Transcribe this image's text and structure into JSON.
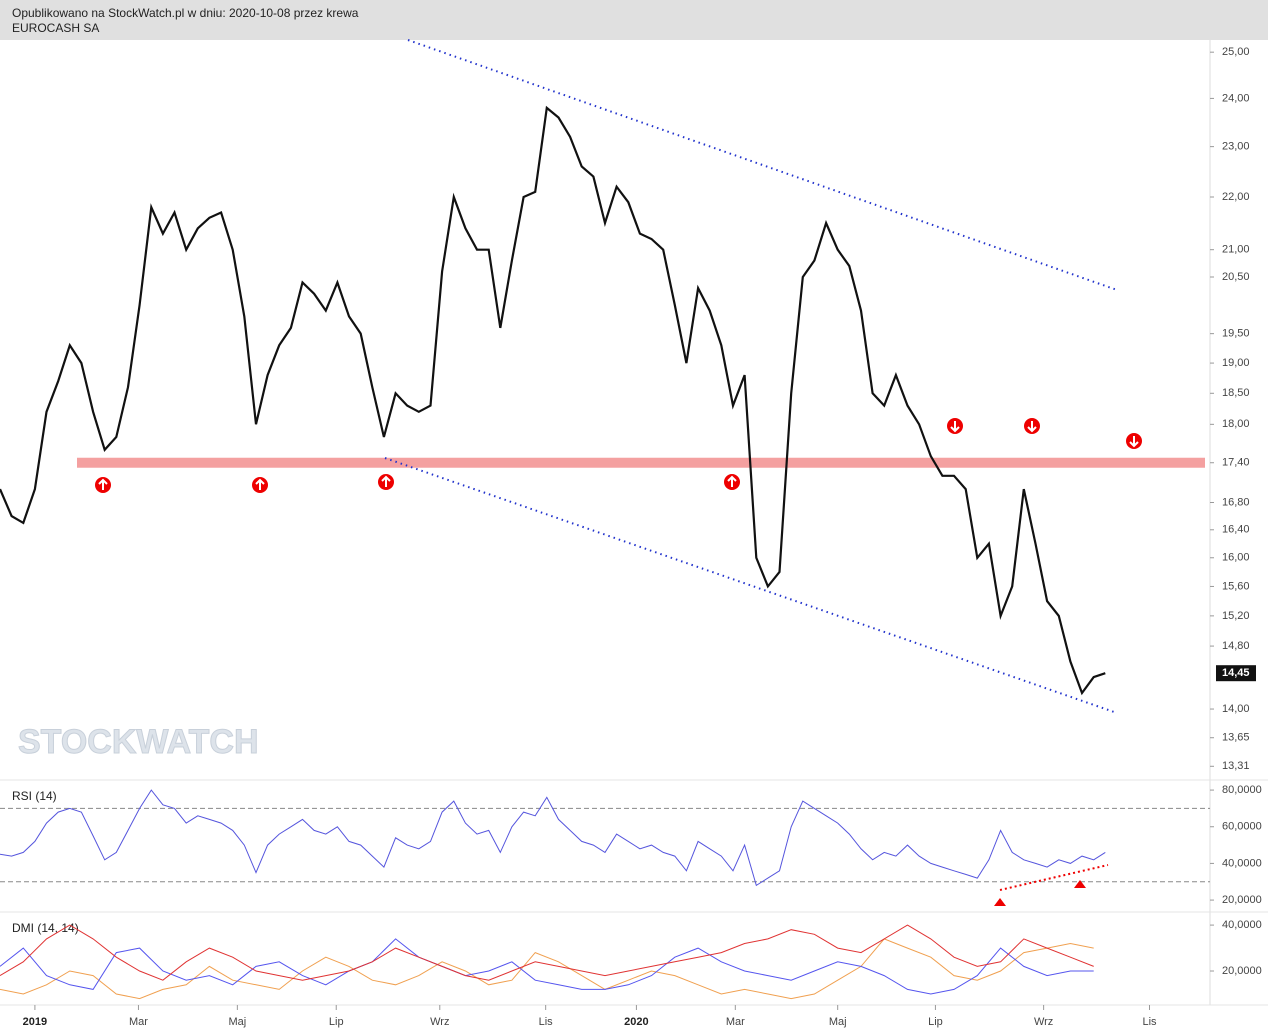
{
  "header": {
    "published": "Opublikowano na StockWatch.pl w dniu: 2020-10-08 przez krewa",
    "symbol": "EUROCASH SA"
  },
  "watermark": "STOCKWATCH",
  "chart_data": [
    {
      "type": "line",
      "log": true,
      "color": "#111111",
      "x": [
        0,
        1,
        2,
        3,
        4,
        5,
        6,
        7,
        8,
        9,
        10,
        11,
        12,
        13,
        14,
        15,
        16,
        17,
        18,
        19,
        20,
        21,
        22,
        23,
        24,
        25,
        26,
        27,
        28,
        29,
        30,
        31,
        32,
        33,
        34,
        35,
        36,
        37,
        38,
        39,
        40,
        41,
        42,
        43,
        44,
        45,
        46,
        47,
        48,
        49,
        50,
        51,
        52,
        53,
        54,
        55,
        56,
        57,
        58,
        59,
        60,
        61,
        62,
        63,
        64,
        65,
        66,
        67,
        68,
        69,
        70,
        71,
        72,
        73,
        74,
        75,
        76,
        77,
        78,
        79,
        80,
        81,
        82,
        83,
        84,
        85,
        86,
        87,
        88,
        89,
        90,
        91,
        92,
        93,
        94,
        95
      ],
      "series": [
        {
          "color": "#111111",
          "values": [
            17.0,
            16.6,
            16.5,
            17.0,
            18.2,
            18.7,
            19.3,
            19.0,
            18.2,
            17.6,
            17.8,
            18.6,
            20.0,
            21.8,
            21.3,
            21.7,
            21.0,
            21.4,
            21.6,
            21.7,
            21.0,
            19.8,
            18.0,
            18.8,
            19.3,
            19.6,
            20.4,
            20.2,
            19.9,
            20.4,
            19.8,
            19.5,
            18.6,
            17.8,
            18.5,
            18.3,
            18.2,
            18.3,
            20.6,
            22.0,
            21.4,
            21.0,
            21.0,
            19.6,
            20.8,
            22.0,
            22.1,
            23.8,
            23.6,
            23.2,
            22.6,
            22.4,
            21.5,
            22.2,
            21.9,
            21.3,
            21.2,
            21.0,
            20.0,
            19.0,
            20.3,
            19.9,
            19.3,
            18.3,
            18.8,
            16.0,
            15.6,
            15.8,
            18.5,
            20.5,
            20.8,
            21.5,
            21.0,
            20.7,
            19.9,
            18.5,
            18.3,
            18.8,
            18.3,
            18.0,
            17.5,
            17.2,
            17.2,
            17.0,
            16.0,
            16.2,
            15.2,
            15.6,
            17.0,
            16.2,
            15.4,
            15.2,
            14.6,
            14.2,
            14.4,
            14.45
          ]
        }
      ],
      "last_price": {
        "value": 14.45,
        "label": "14,45"
      },
      "xlim": [
        0,
        104
      ],
      "xticks": [
        {
          "value": 3.0,
          "label": "2019"
        },
        {
          "value": 11.9,
          "label": "Mar"
        },
        {
          "value": 20.4,
          "label": "Maj"
        },
        {
          "value": 28.9,
          "label": "Lip"
        },
        {
          "value": 37.8,
          "label": "Wrz"
        },
        {
          "value": 46.9,
          "label": "Lis"
        },
        {
          "value": 54.7,
          "label": "2020"
        },
        {
          "value": 63.2,
          "label": "Mar"
        },
        {
          "value": 72.0,
          "label": "Maj"
        },
        {
          "value": 80.4,
          "label": "Lip"
        },
        {
          "value": 89.7,
          "label": "Wrz"
        },
        {
          "value": 98.8,
          "label": "Lis"
        }
      ],
      "ylim": [
        13.15,
        25.27
      ],
      "yticks": [
        {
          "value": 25,
          "label": "25,00"
        },
        {
          "value": 24,
          "label": "24,00"
        },
        {
          "value": 23,
          "label": "23,00"
        },
        {
          "value": 22,
          "label": "22,00"
        },
        {
          "value": 21,
          "label": "21,00"
        },
        {
          "value": 20.5,
          "label": "20,50"
        },
        {
          "value": 19.5,
          "label": "19,50"
        },
        {
          "value": 19,
          "label": "19,00"
        },
        {
          "value": 18.5,
          "label": "18,50"
        },
        {
          "value": 18,
          "label": "18,00"
        },
        {
          "value": 17.4,
          "label": "17,40"
        },
        {
          "value": 16.8,
          "label": "16,80"
        },
        {
          "value": 16.4,
          "label": "16,40"
        },
        {
          "value": 16,
          "label": "16,00"
        },
        {
          "value": 15.6,
          "label": "15,60"
        },
        {
          "value": 15.2,
          "label": "15,20"
        },
        {
          "value": 14.8,
          "label": "14,80"
        },
        {
          "value": 14,
          "label": "14,00"
        },
        {
          "value": 13.65,
          "label": "13,65"
        },
        {
          "value": 13.31,
          "label": "13,31"
        }
      ]
    },
    {
      "type": "line",
      "title": "RSI (14)",
      "color": "#5555dd",
      "x": [
        0,
        1,
        2,
        3,
        4,
        5,
        6,
        7,
        8,
        9,
        10,
        11,
        12,
        13,
        14,
        15,
        16,
        17,
        18,
        19,
        20,
        21,
        22,
        23,
        24,
        25,
        26,
        27,
        28,
        29,
        30,
        31,
        32,
        33,
        34,
        35,
        36,
        37,
        38,
        39,
        40,
        41,
        42,
        43,
        44,
        45,
        46,
        47,
        48,
        49,
        50,
        51,
        52,
        53,
        54,
        55,
        56,
        57,
        58,
        59,
        60,
        61,
        62,
        63,
        64,
        65,
        66,
        67,
        68,
        69,
        70,
        71,
        72,
        73,
        74,
        75,
        76,
        77,
        78,
        79,
        80,
        81,
        82,
        83,
        84,
        85,
        86,
        87,
        88,
        89,
        90,
        91,
        92,
        93,
        94,
        95
      ],
      "series": [
        {
          "color": "#5555dd",
          "values": [
            45,
            44,
            46,
            52,
            62,
            68,
            70,
            68,
            55,
            42,
            46,
            58,
            70,
            80,
            72,
            70,
            62,
            66,
            64,
            62,
            58,
            50,
            35,
            50,
            56,
            60,
            64,
            58,
            56,
            60,
            52,
            50,
            44,
            38,
            54,
            50,
            48,
            52,
            68,
            74,
            62,
            56,
            58,
            46,
            60,
            68,
            66,
            76,
            64,
            58,
            52,
            50,
            46,
            56,
            52,
            48,
            50,
            46,
            44,
            36,
            52,
            48,
            44,
            36,
            50,
            28,
            32,
            36,
            60,
            74,
            70,
            66,
            62,
            56,
            48,
            42,
            46,
            44,
            50,
            44,
            40,
            38,
            36,
            34,
            32,
            42,
            58,
            46,
            42,
            40,
            38,
            42,
            40,
            44,
            42,
            46
          ]
        }
      ],
      "levels": [
        70,
        30
      ],
      "xlim": [
        0,
        104
      ],
      "ylim": [
        13.5,
        85.5
      ],
      "yticks": [
        {
          "value": 80,
          "label": "80,0000"
        },
        {
          "value": 60,
          "label": "60,0000"
        },
        {
          "value": 40,
          "label": "40,0000"
        },
        {
          "value": 20,
          "label": "20,0000"
        }
      ]
    },
    {
      "type": "line",
      "title": "DMI (14, 14)",
      "x": [
        0,
        2,
        4,
        6,
        8,
        10,
        12,
        14,
        16,
        18,
        20,
        22,
        24,
        26,
        28,
        30,
        32,
        34,
        36,
        38,
        40,
        42,
        44,
        46,
        48,
        50,
        52,
        54,
        56,
        58,
        60,
        62,
        64,
        66,
        68,
        70,
        72,
        74,
        76,
        78,
        80,
        82,
        84,
        86,
        88,
        90,
        92,
        94
      ],
      "series": [
        {
          "color": "#f0a050",
          "values": [
            12,
            10,
            14,
            20,
            18,
            10,
            8,
            12,
            14,
            22,
            16,
            14,
            12,
            20,
            26,
            22,
            16,
            14,
            18,
            24,
            20,
            14,
            16,
            28,
            24,
            18,
            12,
            16,
            20,
            18,
            14,
            10,
            12,
            10,
            8,
            10,
            16,
            22,
            34,
            30,
            26,
            18,
            16,
            20,
            28,
            30,
            32,
            30
          ]
        },
        {
          "color": "#5555ee",
          "values": [
            22,
            30,
            18,
            14,
            12,
            28,
            30,
            20,
            16,
            18,
            14,
            22,
            24,
            18,
            14,
            20,
            24,
            34,
            26,
            22,
            18,
            20,
            24,
            16,
            14,
            12,
            12,
            14,
            18,
            26,
            30,
            24,
            20,
            18,
            16,
            20,
            24,
            22,
            18,
            12,
            10,
            12,
            18,
            30,
            22,
            18,
            20,
            20
          ]
        },
        {
          "color": "#e03333",
          "values": [
            18,
            24,
            34,
            40,
            34,
            26,
            20,
            16,
            24,
            30,
            26,
            20,
            18,
            16,
            18,
            20,
            24,
            30,
            26,
            22,
            18,
            16,
            20,
            24,
            22,
            20,
            18,
            20,
            22,
            24,
            26,
            28,
            32,
            34,
            38,
            36,
            30,
            28,
            34,
            40,
            34,
            26,
            22,
            24,
            34,
            30,
            26,
            22
          ]
        }
      ],
      "xlim": [
        0,
        104
      ],
      "ylim": [
        5.2,
        45.7
      ],
      "yticks": [
        {
          "value": 40,
          "label": "40,0000"
        },
        {
          "value": 20,
          "label": "20,0000"
        }
      ]
    }
  ]
}
